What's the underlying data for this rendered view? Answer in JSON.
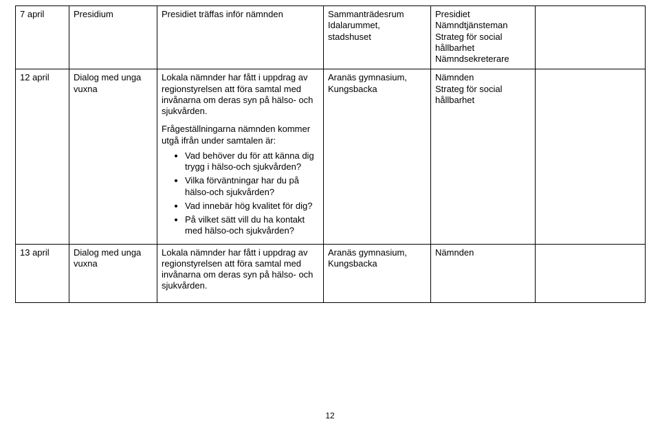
{
  "rows": [
    {
      "date": "7 april",
      "type": "Presidium",
      "desc_main": "Presidiet träffas inför nämnden",
      "location_l1": "Sammanträdesrum",
      "location_l2": "Idalarummet,",
      "location_l3": "stadshuset",
      "who": [
        "Presidiet",
        "Nämndtjänsteman",
        "Strateg för social",
        "hållbarhet",
        "Nämndsekreterare"
      ]
    },
    {
      "date": "12 april",
      "type_l1": "Dialog med unga",
      "type_l2": "vuxna",
      "desc_p1": "Lokala nämnder har fått i uppdrag av regionstyrelsen att föra samtal med invånarna om deras syn på hälso- och sjukvården.",
      "desc_p2": "Frågeställningarna nämnden kommer utgå ifrån under samtalen är:",
      "bullets": [
        "Vad behöver du för att känna dig trygg i hälso-och sjukvården?",
        "Vilka förväntningar har du på hälso-och sjukvården?",
        "Vad innebär hög kvalitet för dig?",
        "På vilket sätt vill du ha kontakt med hälso-och sjukvården?"
      ],
      "location_l1": "Aranäs gymnasium,",
      "location_l2": "Kungsbacka",
      "who": [
        "Nämnden",
        "Strateg för social",
        "hållbarhet"
      ]
    },
    {
      "date": "13 april",
      "type_l1": "Dialog med unga",
      "type_l2": "vuxna",
      "desc_p1": "Lokala nämnder har fått i uppdrag av regionstyrelsen att föra samtal med invånarna om deras syn på hälso- och sjukvården.",
      "location_l1": "Aranäs gymnasium,",
      "location_l2": "Kungsbacka",
      "who": [
        "Nämnden"
      ]
    }
  ],
  "page_number": "12"
}
